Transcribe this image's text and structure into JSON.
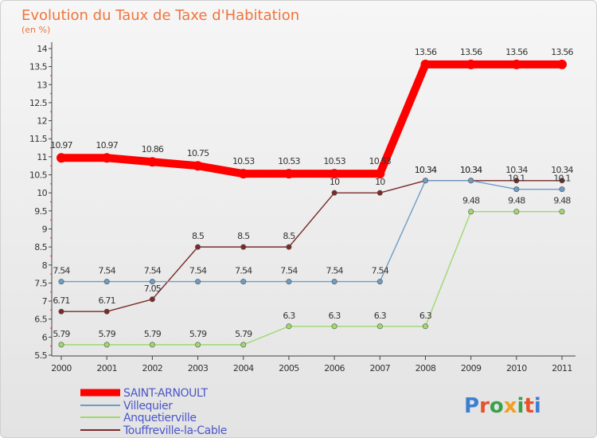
{
  "chart_data": {
    "type": "line",
    "title": "Evolution du Taux de Taxe d'Habitation",
    "subtitle": "(en %)",
    "x": [
      "2000",
      "2001",
      "2002",
      "2003",
      "2004",
      "2005",
      "2006",
      "2007",
      "2008",
      "2009",
      "2010",
      "2011"
    ],
    "y_ticks": [
      "5.5",
      "6",
      "6.5",
      "7",
      "7.5",
      "8",
      "8.5",
      "9",
      "9.5",
      "10",
      "10.5",
      "11",
      "11.5",
      "12",
      "12.5",
      "13",
      "13.5",
      "14"
    ],
    "ylim": [
      5.5,
      14
    ],
    "grid": false,
    "legend_position": "bottom-left",
    "series": [
      {
        "name": "SAINT-ARNOULT",
        "color": "#ff0000",
        "values": [
          10.97,
          10.97,
          10.86,
          10.75,
          10.53,
          10.53,
          10.53,
          10.53,
          13.56,
          13.56,
          13.56,
          13.56
        ],
        "labels": [
          "10.97",
          "10.97",
          "10.86",
          "10.75",
          "10.53",
          "10.53",
          "10.53",
          "10.53",
          "13.56",
          "13.56",
          "13.56",
          "13.56"
        ]
      },
      {
        "name": "Villequier",
        "color": "#6d9dc6",
        "values": [
          7.54,
          7.54,
          7.54,
          7.54,
          7.54,
          7.54,
          7.54,
          7.54,
          10.34,
          10.34,
          10.1,
          10.1
        ],
        "labels": [
          "7.54",
          "7.54",
          "7.54",
          "7.54",
          "7.54",
          "7.54",
          "7.54",
          "7.54",
          "10.34",
          "10.34",
          "10.1",
          "10.1"
        ]
      },
      {
        "name": "Anquetierville",
        "color": "#9fd86e",
        "values": [
          5.79,
          5.79,
          5.79,
          5.79,
          5.79,
          6.3,
          6.3,
          6.3,
          6.3,
          9.48,
          9.48,
          9.48
        ],
        "labels": [
          "5.79",
          "5.79",
          "5.79",
          "5.79",
          "5.79",
          "6.3",
          "6.3",
          "6.3",
          "6.3",
          "9.48",
          "9.48",
          "9.48"
        ]
      },
      {
        "name": "Touffreville-la-Cable",
        "color": "#7a2a2a",
        "values": [
          6.71,
          6.71,
          7.05,
          8.5,
          8.5,
          8.5,
          10,
          10,
          10.34,
          10.34,
          10.34,
          10.34
        ],
        "labels": [
          "6.71",
          "6.71",
          "7.05",
          "8.5",
          "8.5",
          "8.5",
          "10",
          "10",
          "10.34",
          "10.34",
          "10.34",
          "10.34"
        ]
      }
    ]
  },
  "logo": {
    "text": "Proxiti"
  },
  "colors": {
    "title": "#f0743c",
    "legend_text": "#4a56c8",
    "axis": "#444444"
  }
}
